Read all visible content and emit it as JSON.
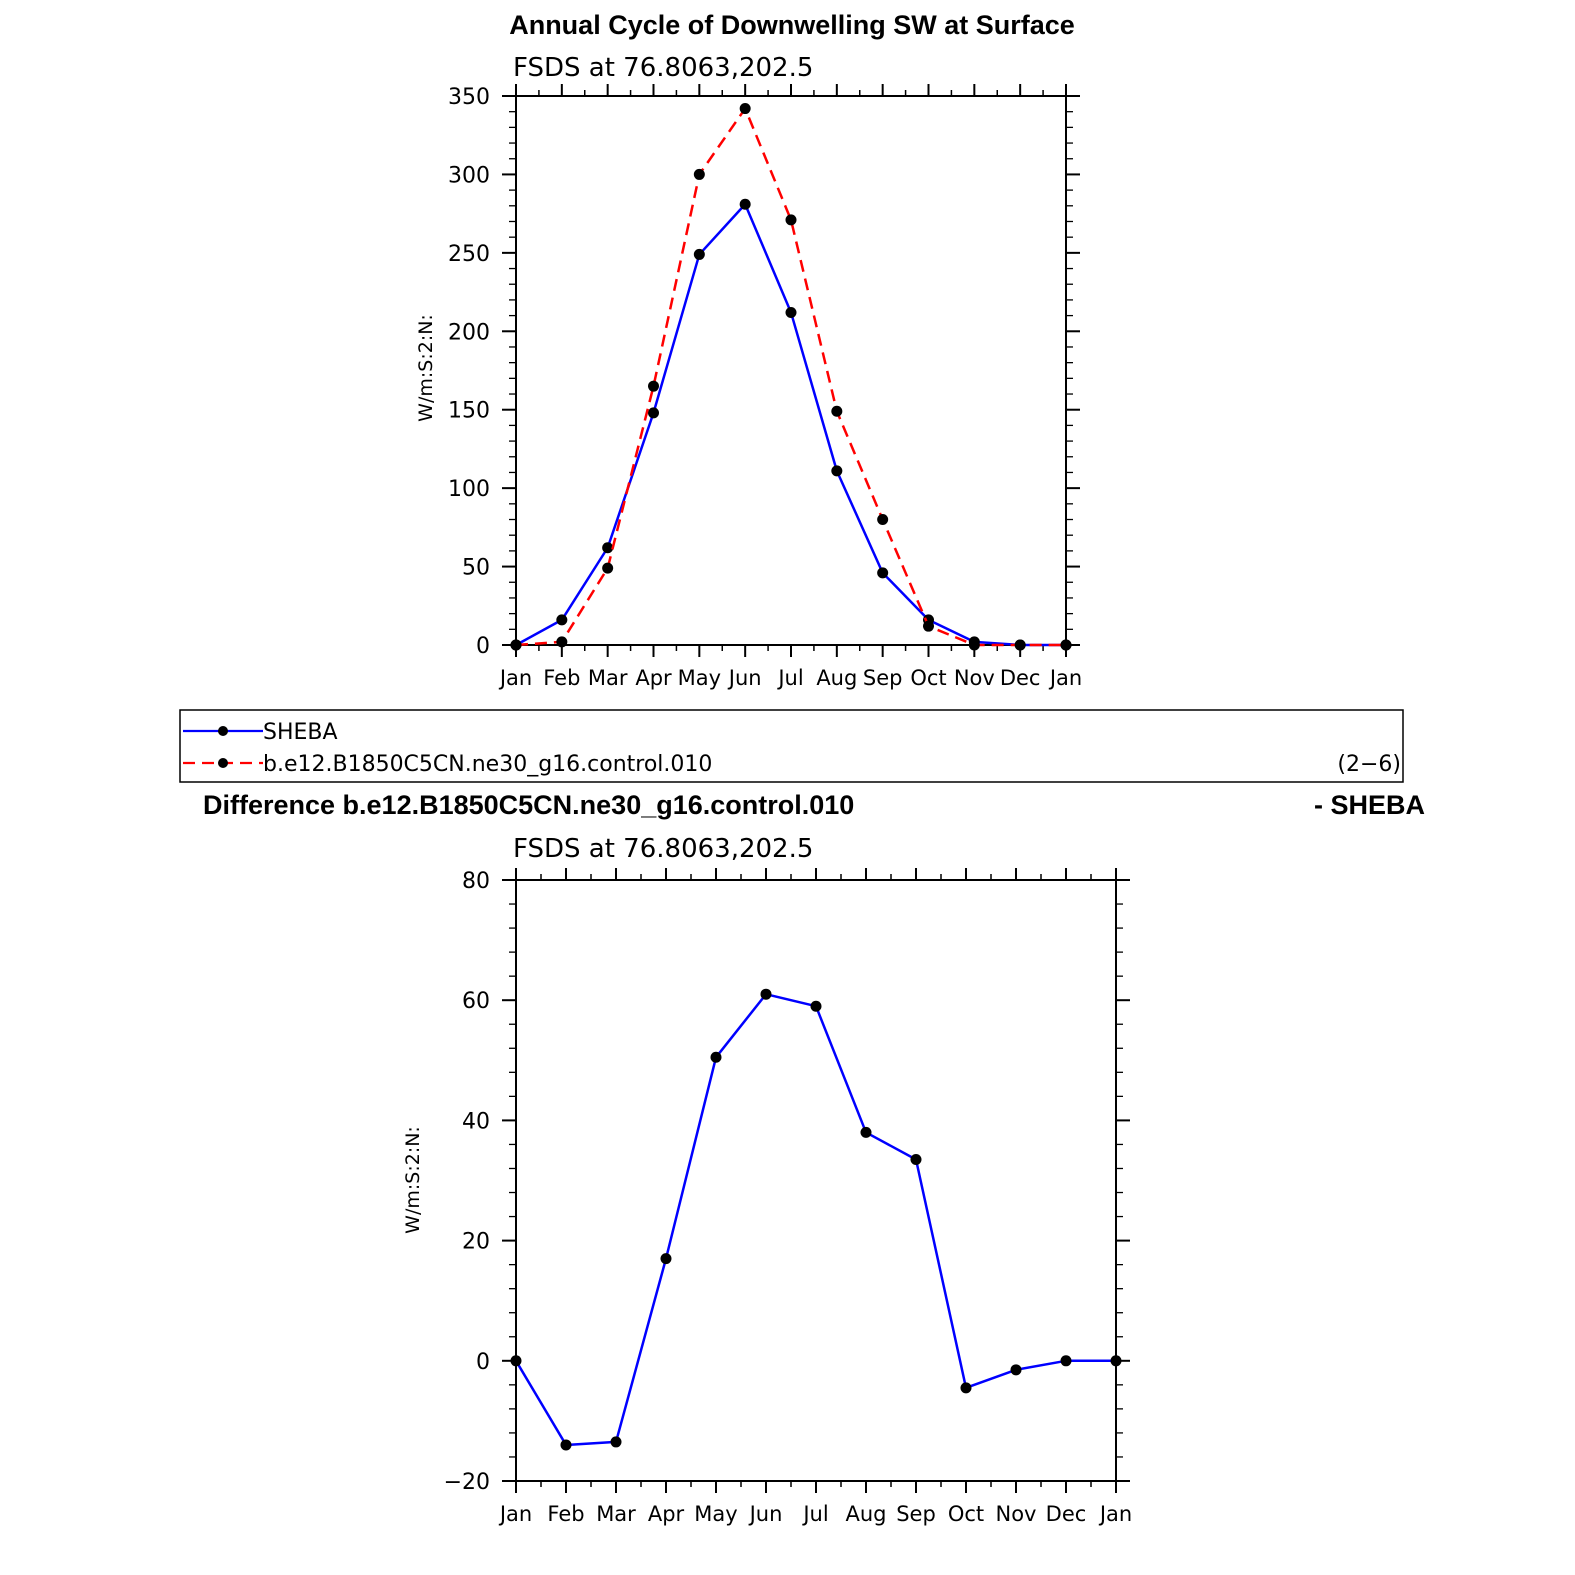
{
  "chart_data": [
    {
      "type": "line",
      "title": "Annual Cycle of Downwelling SW at Surface",
      "subtitle": "FSDS at 76.8063,202.5",
      "ylabel": "W/m:S:2:N:",
      "ylim": [
        0,
        350
      ],
      "yticks": [
        "0",
        "50",
        "100",
        "150",
        "200",
        "250",
        "300",
        "350"
      ],
      "categories": [
        "Jan",
        "Feb",
        "Mar",
        "Apr",
        "May",
        "Jun",
        "Jul",
        "Aug",
        "Sep",
        "Oct",
        "Nov",
        "Dec",
        "Jan"
      ],
      "series": [
        {
          "name": "SHEBA",
          "color": "#0000ff",
          "dash": "solid",
          "values": [
            0,
            16,
            62,
            148,
            249,
            281,
            212,
            111,
            46,
            16,
            2,
            0,
            0
          ]
        },
        {
          "name": "b.e12.B1850C5CN.ne30_g16.control.010",
          "color": "#ff0000",
          "dash": "dashed",
          "values": [
            0,
            2,
            49,
            165,
            300,
            342,
            271,
            149,
            80,
            12,
            0,
            0,
            0
          ]
        }
      ],
      "legend_note": "(2−6)"
    },
    {
      "type": "line",
      "title_left": "Difference b.e12.B1850C5CN.ne30_g16.control.010",
      "title_right": "- SHEBA",
      "subtitle": "FSDS at 76.8063,202.5",
      "ylabel": "W/m:S:2:N:",
      "ylim": [
        -20,
        80
      ],
      "yticks": [
        "−20",
        "0",
        "20",
        "40",
        "60",
        "80"
      ],
      "categories": [
        "Jan",
        "Feb",
        "Mar",
        "Apr",
        "May",
        "Jun",
        "Jul",
        "Aug",
        "Sep",
        "Oct",
        "Nov",
        "Dec",
        "Jan"
      ],
      "series": [
        {
          "color": "#0000ff",
          "dash": "solid",
          "values": [
            0,
            -14,
            -13.5,
            17,
            50.5,
            61,
            59,
            38,
            33.5,
            -4.5,
            -1.5,
            0,
            0
          ]
        }
      ]
    }
  ]
}
